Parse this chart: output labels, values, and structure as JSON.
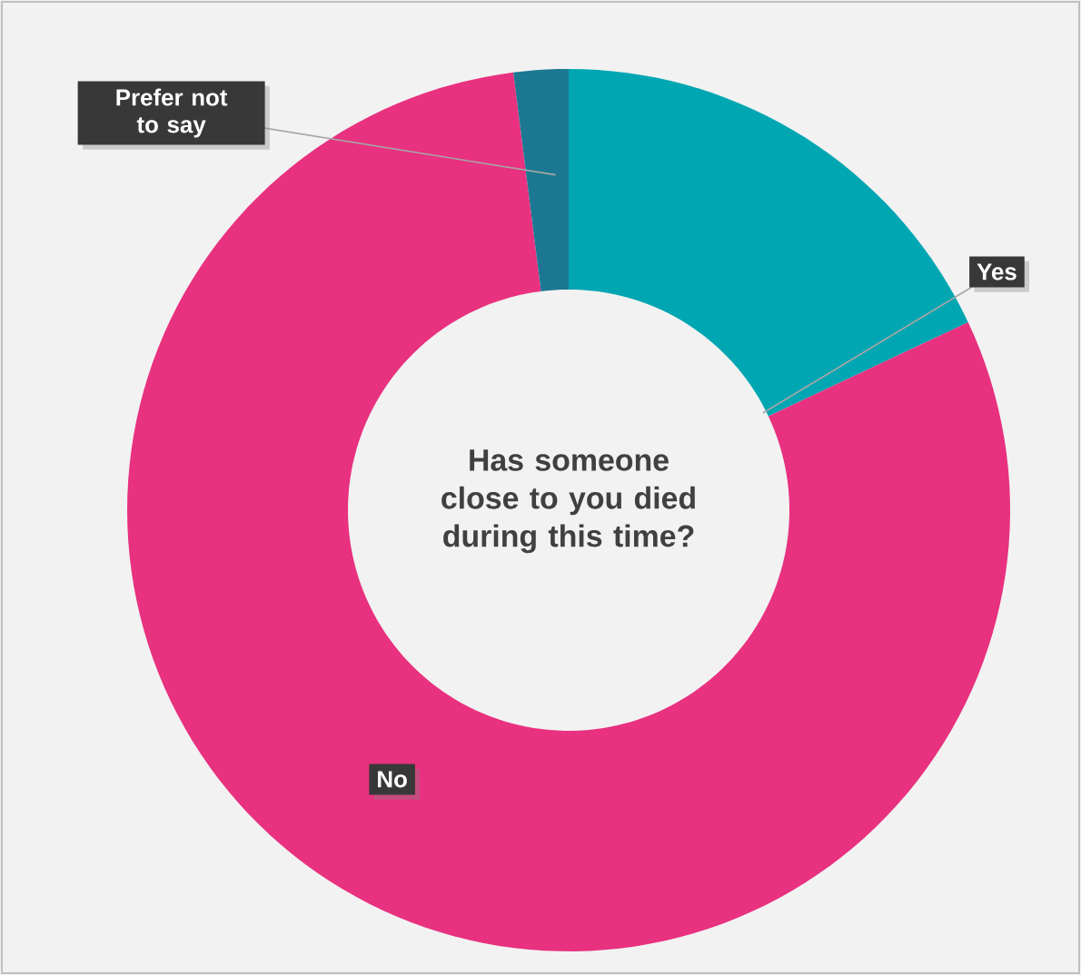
{
  "chart_data": {
    "type": "donut",
    "title": "Has someone close  to you died during this time?",
    "categories": [
      "Yes",
      "No",
      "Prefer not to say"
    ],
    "values": [
      18,
      80,
      2
    ],
    "colors": [
      "#00a6b2",
      "#e8317f",
      "#1c7892"
    ]
  }
}
